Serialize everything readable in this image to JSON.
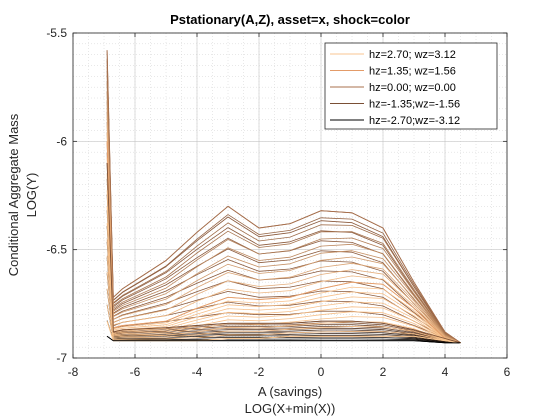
{
  "chart_data": {
    "type": "line",
    "title": "Pstationary(A,Z), asset=x, shock=color",
    "xlabel": "A (savings)",
    "xlabel2": "LOG(X+min(X))",
    "ylabel": "Conditional Aggregate Mass",
    "ylabel2": "LOG(Y)",
    "xlim": [
      -8,
      6
    ],
    "ylim": [
      -7,
      -5.5
    ],
    "xticks": [
      -8,
      -6,
      -4,
      -2,
      0,
      2,
      4,
      6
    ],
    "yticks": [
      -7,
      -6.5,
      -6,
      -5.5
    ],
    "xtick_labels": [
      "-8",
      "-6",
      "-4",
      "-2",
      "0",
      "2",
      "4",
      "6"
    ],
    "ytick_labels": [
      "-7",
      "-6.5",
      "-6",
      "-5.5"
    ],
    "grid": true,
    "minor_grid": true,
    "legend_position": "top-right",
    "color_low": "#000000",
    "color_mid": "#8b5a3c",
    "color_high": "#f7c08a",
    "series": [
      {
        "name": "hz=2.70; wz=3.12",
        "color": "#f9c690",
        "x": [
          -6.9,
          -6.7,
          -6.4,
          -5,
          -4,
          -3,
          -2,
          -1,
          0,
          1,
          2,
          3,
          4,
          4.5
        ],
        "y": [
          -6.83,
          -6.92,
          -6.92,
          -6.92,
          -6.92,
          -6.91,
          -6.91,
          -6.9,
          -6.9,
          -6.9,
          -6.9,
          -6.9,
          -6.92,
          -6.93
        ]
      },
      {
        "name": "hz=1.35; wz=1.56",
        "color": "#e39b68",
        "x": [
          -6.9,
          -6.7,
          -6.4,
          -5,
          -4,
          -3,
          -2,
          -1,
          0,
          1,
          2,
          3,
          4,
          4.5
        ],
        "y": [
          -6.0,
          -6.86,
          -6.85,
          -6.83,
          -6.77,
          -6.72,
          -6.73,
          -6.72,
          -6.68,
          -6.65,
          -6.66,
          -6.77,
          -6.91,
          -6.93
        ]
      },
      {
        "name": "hz=0.00; wz=0.00",
        "color": "#a8704d",
        "x": [
          -6.9,
          -6.7,
          -6.4,
          -5,
          -4,
          -3,
          -2,
          -1,
          0,
          1,
          2,
          3,
          4,
          4.5
        ],
        "y": [
          -5.58,
          -6.72,
          -6.68,
          -6.55,
          -6.42,
          -6.3,
          -6.4,
          -6.38,
          -6.32,
          -6.33,
          -6.4,
          -6.65,
          -6.88,
          -6.93
        ]
      },
      {
        "name": "hz=-1.35;wz=-1.56",
        "color": "#7a4f35",
        "x": [
          -6.9,
          -6.7,
          -6.4,
          -5,
          -4,
          -3,
          -2,
          -1,
          0,
          1,
          2,
          3,
          4,
          4.5
        ],
        "y": [
          -6.1,
          -6.88,
          -6.87,
          -6.86,
          -6.85,
          -6.84,
          -6.84,
          -6.84,
          -6.83,
          -6.83,
          -6.84,
          -6.87,
          -6.91,
          -6.93
        ]
      },
      {
        "name": "hz=-2.70;wz=-3.12",
        "color": "#000000",
        "x": [
          -6.9,
          -6.7,
          -6.4,
          -5,
          -4,
          -3,
          -2,
          -1,
          0,
          1,
          2,
          3,
          4,
          4.5
        ],
        "y": [
          -6.9,
          -6.92,
          -6.92,
          -6.92,
          -6.92,
          -6.92,
          -6.92,
          -6.92,
          -6.92,
          -6.92,
          -6.92,
          -6.92,
          -6.93,
          -6.93
        ]
      }
    ],
    "series_count_drawn": 45
  }
}
